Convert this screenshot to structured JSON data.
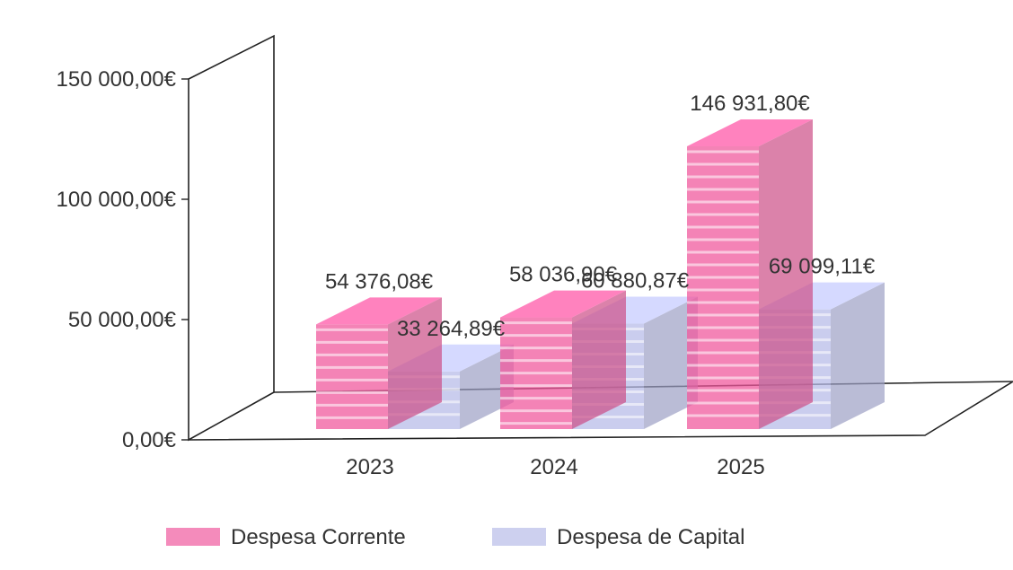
{
  "chart_data": {
    "type": "bar",
    "categories": [
      "2023",
      "2024",
      "2025"
    ],
    "series": [
      {
        "name": "Despesa Corrente",
        "values": [
          54376.08,
          58036.9,
          146931.8
        ],
        "labels": [
          "54 376,08€",
          "58 036,90€",
          "146 931,80€"
        ],
        "color": "#f05a9e"
      },
      {
        "name": "Despesa de Capital",
        "values": [
          33264.89,
          60880.87,
          69099.11
        ],
        "labels": [
          "33 264,89€",
          "60 880,87€",
          "69 099,11€"
        ],
        "color": "#b8bce8"
      }
    ],
    "ylim": [
      0,
      150000
    ],
    "yticks": [
      {
        "value": 0,
        "label": "0,00€"
      },
      {
        "value": 50000,
        "label": "50 000,00€"
      },
      {
        "value": 100000,
        "label": "100 000,00€"
      },
      {
        "value": 150000,
        "label": "150 000,00€"
      }
    ],
    "legend_position": "bottom",
    "three_d": true,
    "grid": false
  }
}
